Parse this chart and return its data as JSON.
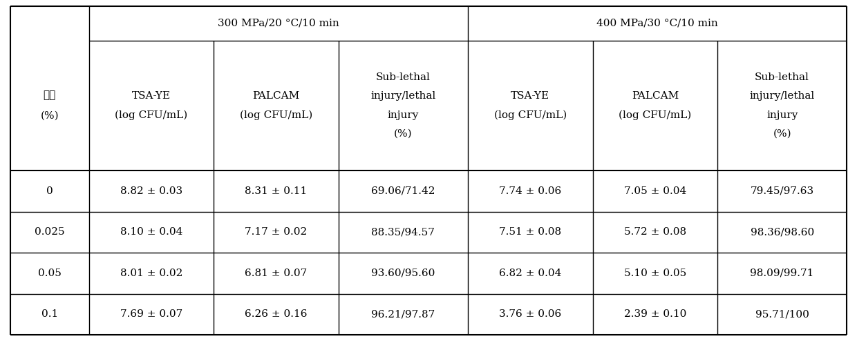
{
  "col_group1": "300 MPa/20 °C/10 min",
  "col_group2": "400 MPa/30 °C/10 min",
  "col0_header": [
    "浓度",
    "(%）"
  ],
  "col1_header": [
    "TSA-YE",
    "(log CFU/mL)"
  ],
  "col2_header": [
    "PALCAM",
    "(log CFU/mL)"
  ],
  "col3_header": [
    "Sub-lethal",
    "injury/lethal",
    "injury",
    "(%)"
  ],
  "col4_header": [
    "TSA-YE",
    "(log CFU/mL)"
  ],
  "col5_header": [
    "PALCAM",
    "(log CFU/mL)"
  ],
  "col6_header": [
    "Sub-lethal",
    "injury/lethal",
    "injury",
    "(%)"
  ],
  "row_labels": [
    "0",
    "0.025",
    "0.05",
    "0.1"
  ],
  "data": [
    [
      "8.82 ± 0.03",
      "8.31 ± 0.11",
      "69.06/71.42",
      "7.74 ± 0.06",
      "7.05 ± 0.04",
      "79.45/97.63"
    ],
    [
      "8.10 ± 0.04",
      "7.17 ± 0.02",
      "88.35/94.57",
      "7.51 ± 0.08",
      "5.72 ± 0.08",
      "98.36/98.60"
    ],
    [
      "8.01 ± 0.02",
      "6.81 ± 0.07",
      "93.60/95.60",
      "6.82 ± 0.04",
      "5.10 ± 0.05",
      "98.09/99.71"
    ],
    [
      "7.69 ± 0.07",
      "6.26 ± 0.16",
      "96.21/97.87",
      "3.76 ± 0.06",
      "2.39 ± 0.10",
      "95.71/100"
    ]
  ],
  "background_color": "#ffffff",
  "text_color": "#000000",
  "line_color": "#000000",
  "font_size": 11.0,
  "header_font_size": 11.0,
  "col0_header_cn": [
    "浓度",
    "(%）"
  ],
  "col0_line1": "浓度",
  "col0_line2": "(％）"
}
